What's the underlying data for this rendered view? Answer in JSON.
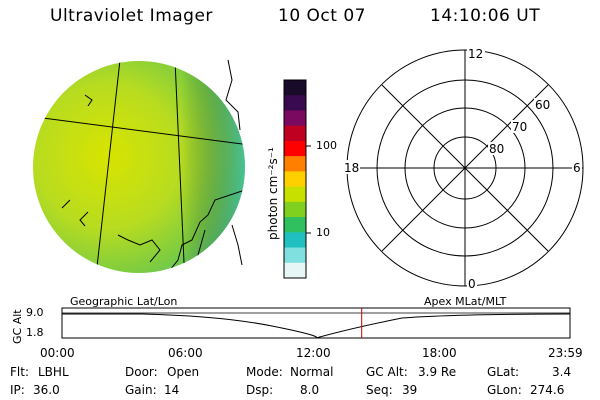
{
  "header": {
    "instrument": "Ultraviolet Imager",
    "date": "10 Oct 07",
    "time": "14:10:06 UT"
  },
  "colorbar": {
    "unit_label": "photon cm⁻²s⁻¹",
    "ticks": [
      "100",
      "10"
    ],
    "colors": [
      "#1a0a2a",
      "#3a0a50",
      "#7a0a60",
      "#c00020",
      "#ff0000",
      "#ff8000",
      "#ffd000",
      "#c8e000",
      "#80d020",
      "#30c060",
      "#20c0c0",
      "#80e0e0",
      "#e6f5f5"
    ]
  },
  "polar": {
    "mlt_labels": {
      "top": "12",
      "left": "18",
      "right": "6",
      "bottom": "0"
    },
    "lat_labels": [
      "60",
      "70",
      "80"
    ]
  },
  "timeline": {
    "left_caption": "Geographic Lat/Lon",
    "right_caption": "Apex MLat/MLT",
    "axis_title": "GC Alt",
    "y_ticks": [
      "9.0",
      "1.8"
    ],
    "x_ticks": [
      "00:00",
      "06:00",
      "12:00",
      "18:00",
      "23:59"
    ],
    "current_time_fraction": 0.59
  },
  "status": {
    "flt_label": "Flt:",
    "flt_value": "LBHL",
    "ip_label": "IP:",
    "ip_value": "36.0",
    "door_label": "Door:",
    "door_value": "Open",
    "gain_label": "Gain:",
    "gain_value": "14",
    "mode_label": "Mode:",
    "mode_value": "Normal",
    "dsp_label": "Dsp:",
    "dsp_value": "8.0",
    "gcalt_label": "GC Alt:",
    "gcalt_value": "3.9 Re",
    "seq_label": "Seq:",
    "seq_value": "39",
    "glat_label": "GLat:",
    "glat_value": "3.4",
    "glon_label": "GLon:",
    "glon_value": "274.6"
  }
}
